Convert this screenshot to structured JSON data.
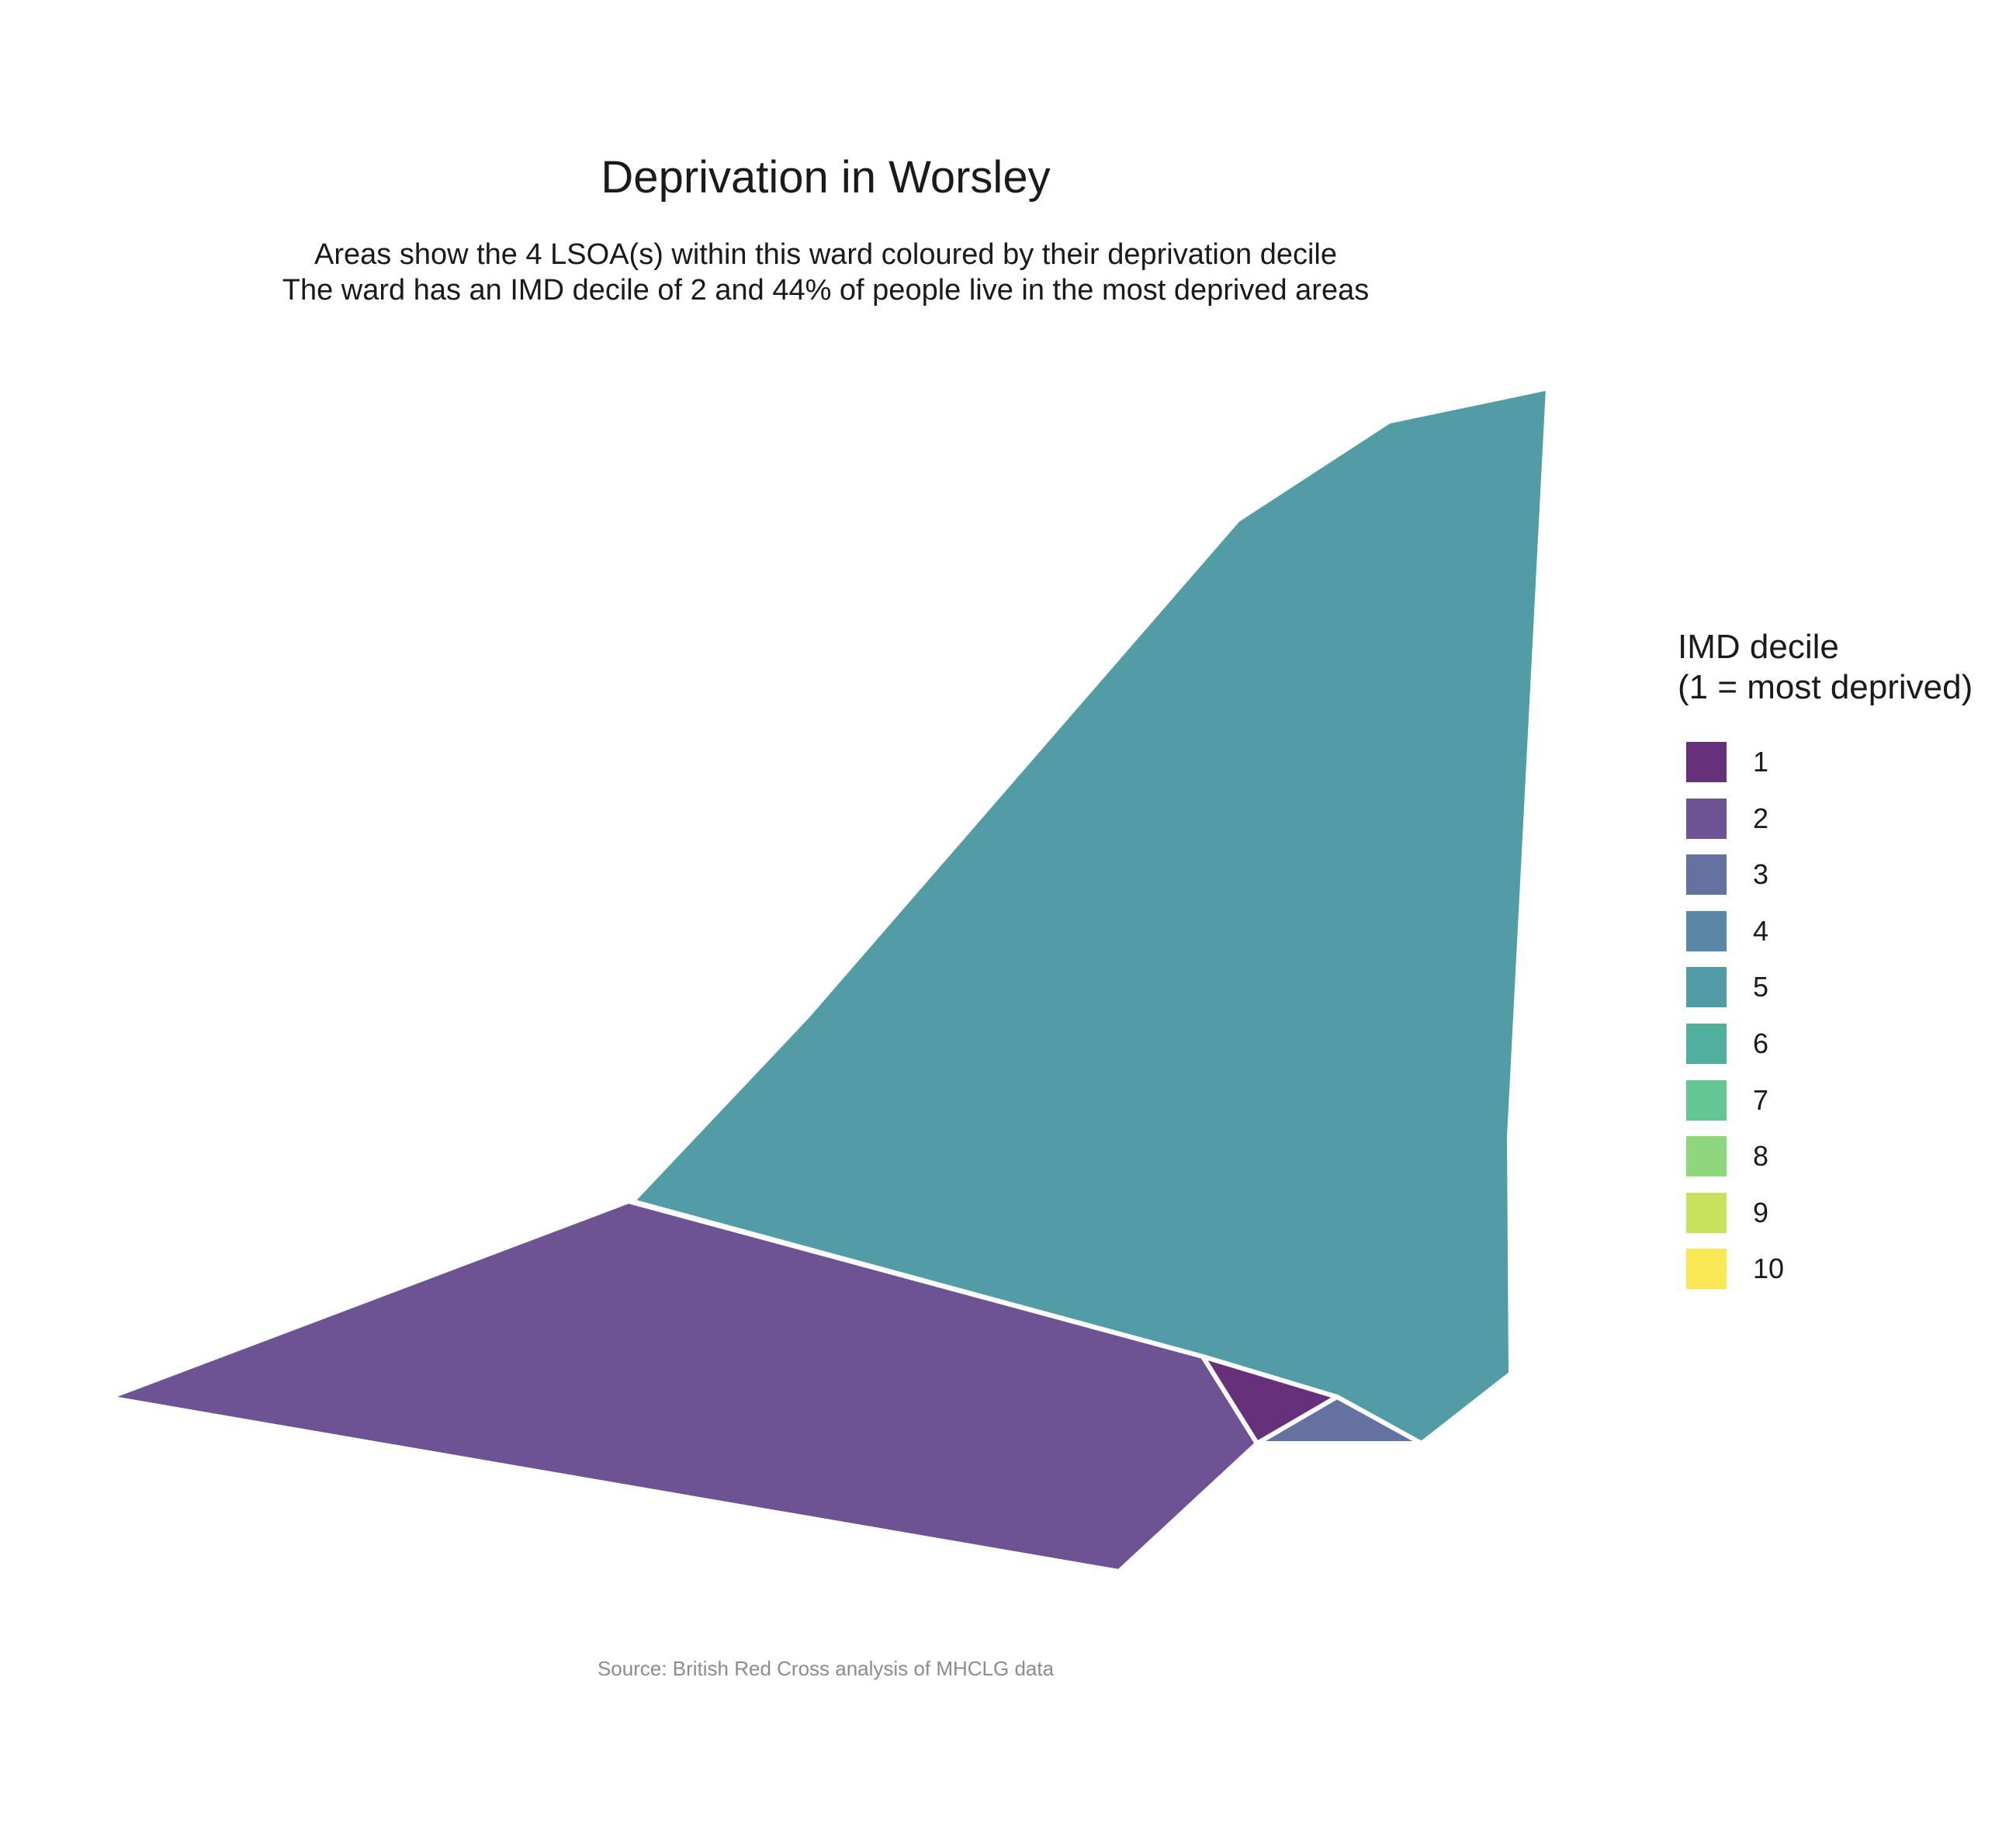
{
  "title": "Deprivation in Worsley",
  "subtitle": {
    "line1": "Areas show the 4 LSOA(s) within this ward coloured by their deprivation decile",
    "line2": "The ward has an IMD decile of 2 and 44% of people live in the most deprived areas"
  },
  "legend": {
    "title_line1": "IMD decile",
    "title_line2": "(1 = most deprived)",
    "items": [
      {
        "label": "1",
        "color": "#67307a"
      },
      {
        "label": "2",
        "color": "#6d5393"
      },
      {
        "label": "3",
        "color": "#6571a1"
      },
      {
        "label": "4",
        "color": "#5a87a5"
      },
      {
        "label": "5",
        "color": "#529ca5"
      },
      {
        "label": "6",
        "color": "#50b09d"
      },
      {
        "label": "7",
        "color": "#64c693"
      },
      {
        "label": "8",
        "color": "#8ed77c"
      },
      {
        "label": "9",
        "color": "#c6e35b"
      },
      {
        "label": "10",
        "color": "#f9e854"
      }
    ]
  },
  "map_areas": [
    {
      "name": "lsoa-decile-5",
      "decile": 5,
      "color": "#529ca5"
    },
    {
      "name": "lsoa-decile-2",
      "decile": 2,
      "color": "#6d5393"
    },
    {
      "name": "lsoa-decile-1",
      "decile": 1,
      "color": "#67307a"
    },
    {
      "name": "lsoa-decile-3",
      "decile": 3,
      "color": "#6571a1"
    }
  ],
  "caption": "Source: British Red Cross analysis of MHCLG data"
}
